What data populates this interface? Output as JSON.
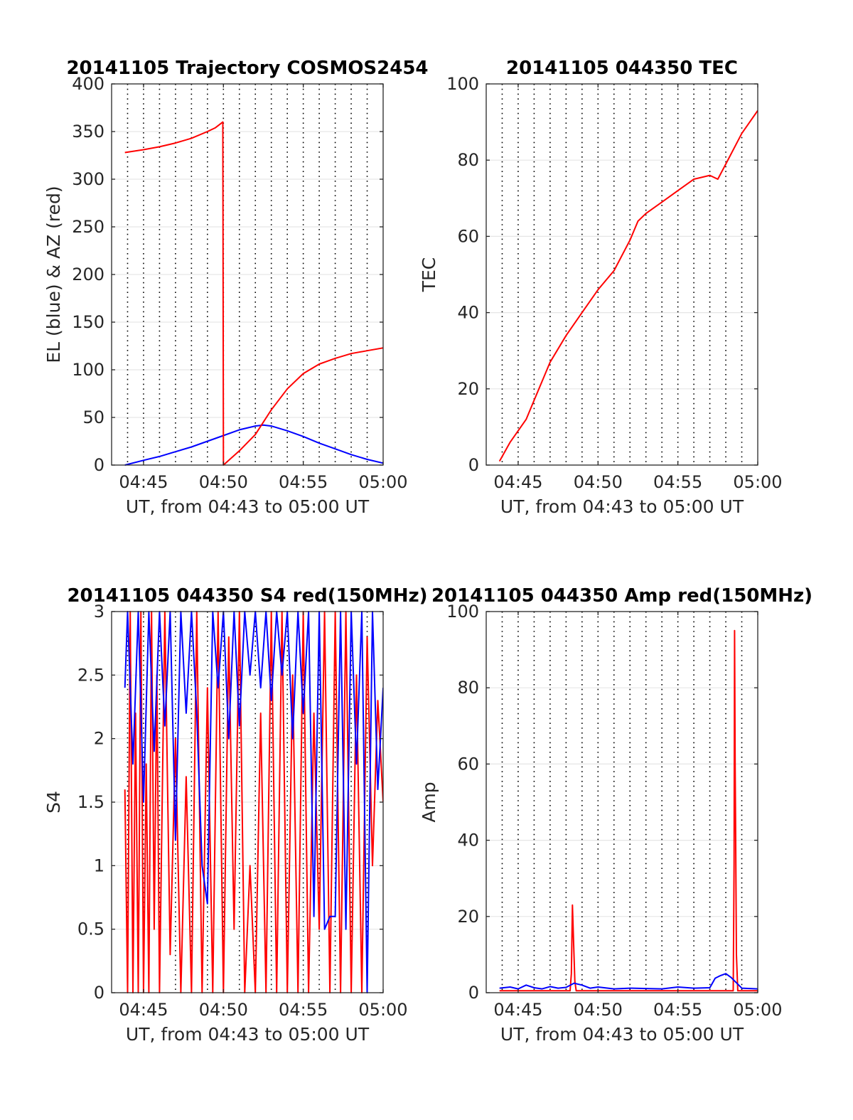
{
  "figure": {
    "colors": {
      "el": "#0000ff",
      "az": "#ff0000",
      "tec": "#ff0000",
      "red": "#ff0000",
      "blue": "#0000ff",
      "grid": "#e6e6e6",
      "axes": "#262626"
    }
  },
  "chart_data": [
    {
      "type": "line",
      "title": "20141105 Trajectory COSMOS2454",
      "xlabel": "UT, from 04:43 to 05:00 UT",
      "ylabel": "EL (blue) & AZ (red)",
      "xlim": [
        "04:43:00",
        "05:00:00"
      ],
      "ylim": [
        0,
        400
      ],
      "xticks": [
        "04:45",
        "04:50",
        "04:55",
        "05:00"
      ],
      "yticks": [
        0,
        50,
        100,
        150,
        200,
        250,
        300,
        350,
        400
      ],
      "grid": true,
      "series": [
        {
          "name": "EL",
          "color": "#0000ff",
          "x": [
            "04:43:50",
            "04:45:00",
            "04:46:00",
            "04:47:00",
            "04:48:00",
            "04:49:00",
            "04:50:00",
            "04:51:00",
            "04:52:00",
            "04:52:30",
            "04:53:00",
            "04:54:00",
            "04:55:00",
            "04:56:00",
            "04:57:00",
            "04:58:00",
            "04:59:00",
            "05:00:00"
          ],
          "y": [
            0,
            5,
            9,
            14,
            19,
            25,
            31,
            37,
            41,
            42,
            41,
            36,
            30,
            23,
            17,
            11,
            6,
            2
          ]
        },
        {
          "name": "AZ",
          "color": "#ff0000",
          "x": [
            "04:43:50",
            "04:45:00",
            "04:46:00",
            "04:47:00",
            "04:48:00",
            "04:49:00",
            "04:49:30",
            "04:49:58",
            "04:50:00",
            "04:51:00",
            "04:52:00",
            "04:53:00",
            "04:54:00",
            "04:55:00",
            "04:56:00",
            "04:57:00",
            "04:58:00",
            "04:59:00",
            "05:00:00"
          ],
          "y": [
            328,
            331,
            334,
            338,
            343,
            350,
            354,
            360,
            0,
            15,
            32,
            58,
            80,
            96,
            106,
            112,
            117,
            120,
            123
          ]
        }
      ]
    },
    {
      "type": "line",
      "title": "20141105 044350 TEC",
      "xlabel": "UT, from 04:43 to 05:00 UT",
      "ylabel": "TEC",
      "xlim": [
        "04:43:00",
        "05:00:00"
      ],
      "ylim": [
        0,
        100
      ],
      "xticks": [
        "04:45",
        "04:50",
        "04:55",
        "05:00"
      ],
      "yticks": [
        0,
        20,
        40,
        60,
        80,
        100
      ],
      "grid": true,
      "series": [
        {
          "color": "#ff0000",
          "x": [
            "04:43:50",
            "04:44:30",
            "04:45:00",
            "04:45:30",
            "04:46:00",
            "04:47:00",
            "04:48:00",
            "04:49:00",
            "04:50:00",
            "04:51:00",
            "04:52:00",
            "04:52:30",
            "04:53:00",
            "04:54:00",
            "04:55:00",
            "04:56:00",
            "04:57:00",
            "04:57:30",
            "04:58:00",
            "04:59:00",
            "05:00:00"
          ],
          "y": [
            1,
            6,
            9,
            12,
            17,
            27,
            34,
            40,
            46,
            51,
            59,
            64,
            66,
            69,
            72,
            75,
            76,
            75,
            79,
            87,
            93
          ]
        }
      ]
    },
    {
      "type": "line",
      "title": "20141105 044350 S4 red(150MHz)",
      "xlabel": "UT, from 04:43 to 05:00 UT",
      "ylabel": "S4",
      "xlim": [
        "04:43:00",
        "05:00:00"
      ],
      "ylim": [
        0,
        3
      ],
      "xticks": [
        "04:45",
        "04:50",
        "04:55",
        "05:00"
      ],
      "yticks": [
        "0",
        "0.5",
        "1",
        "1.5",
        "2",
        "2.5",
        "3"
      ],
      "grid": true,
      "series": [
        {
          "color": "#ff0000",
          "x": [
            "04:43:50",
            "04:44:00",
            "04:44:10",
            "04:44:20",
            "04:44:30",
            "04:44:40",
            "04:44:50",
            "04:45:00",
            "04:45:10",
            "04:45:20",
            "04:45:30",
            "04:45:40",
            "04:45:50",
            "04:46:00",
            "04:46:20",
            "04:46:40",
            "04:47:00",
            "04:47:20",
            "04:47:40",
            "04:48:00",
            "04:48:20",
            "04:48:40",
            "04:49:00",
            "04:49:20",
            "04:49:40",
            "04:50:00",
            "04:50:20",
            "04:50:40",
            "04:51:00",
            "04:51:20",
            "04:51:40",
            "04:52:00",
            "04:52:20",
            "04:52:40",
            "04:53:00",
            "04:53:20",
            "04:53:40",
            "04:54:00",
            "04:54:20",
            "04:54:40",
            "04:55:00",
            "04:55:20",
            "04:55:40",
            "04:56:00",
            "04:56:20",
            "04:56:40",
            "04:57:00",
            "04:57:20",
            "04:57:40",
            "04:58:00",
            "04:58:20",
            "04:58:40",
            "04:59:00",
            "04:59:20",
            "04:59:40",
            "05:00:00"
          ],
          "y": [
            1.6,
            0,
            3,
            0,
            2.2,
            0,
            3,
            0,
            1.8,
            0,
            3,
            0.5,
            2.5,
            0,
            3,
            0.3,
            2,
            0,
            1.7,
            0,
            3,
            0,
            2.4,
            0,
            3,
            0,
            2.8,
            0.5,
            3,
            0,
            1,
            0,
            2.2,
            0,
            3,
            0,
            3,
            0,
            2.5,
            0,
            3,
            0,
            2.2,
            0.5,
            3,
            0,
            3,
            0,
            3,
            0,
            2.5,
            0,
            2.8,
            1,
            2.3,
            1.5
          ]
        },
        {
          "color": "#0000ff",
          "x": [
            "04:43:50",
            "04:44:00",
            "04:44:20",
            "04:44:40",
            "04:45:00",
            "04:45:20",
            "04:45:40",
            "04:46:00",
            "04:46:20",
            "04:46:40",
            "04:47:00",
            "04:47:20",
            "04:47:40",
            "04:48:00",
            "04:48:20",
            "04:48:40",
            "04:49:00",
            "04:49:20",
            "04:49:40",
            "04:50:00",
            "04:50:20",
            "04:50:40",
            "04:51:00",
            "04:51:20",
            "04:51:40",
            "04:52:00",
            "04:52:20",
            "04:52:40",
            "04:53:00",
            "04:53:20",
            "04:53:40",
            "04:54:00",
            "04:54:20",
            "04:54:40",
            "04:55:00",
            "04:55:20",
            "04:55:40",
            "04:56:00",
            "04:56:20",
            "04:56:40",
            "04:57:00",
            "04:57:20",
            "04:57:40",
            "04:58:00",
            "04:58:20",
            "04:58:40",
            "04:59:00",
            "04:59:20",
            "04:59:40",
            "05:00:00"
          ],
          "y": [
            2.4,
            3,
            1.8,
            3,
            1.5,
            3,
            1.9,
            3,
            2.1,
            3,
            1.2,
            3,
            2.2,
            3,
            2.2,
            1.0,
            0.7,
            3,
            2.4,
            3,
            2,
            3,
            2.1,
            3,
            2.5,
            3,
            2.4,
            3,
            2.3,
            3,
            2.5,
            3,
            2.0,
            3,
            2.2,
            3,
            0.6,
            3,
            0.5,
            0.6,
            0.6,
            3,
            0.5,
            3,
            1.8,
            3,
            0,
            3,
            1.6,
            2.4
          ]
        }
      ]
    },
    {
      "type": "line",
      "title": "20141105 044350 Amp red(150MHz)",
      "xlabel": "UT, from 04:43 to 05:00 UT",
      "ylabel": "Amp",
      "xlim": [
        "04:43:00",
        "05:00:00"
      ],
      "ylim": [
        0,
        100
      ],
      "xticks": [
        "04:45",
        "04:50",
        "04:55",
        "05:00"
      ],
      "yticks": [
        0,
        20,
        40,
        60,
        80,
        100
      ],
      "grid": true,
      "series": [
        {
          "color": "#ff0000",
          "x": [
            "04:43:50",
            "04:48:15",
            "04:48:20",
            "04:48:24",
            "04:48:28",
            "04:48:33",
            "04:48:38",
            "04:58:28",
            "04:58:31",
            "04:58:33",
            "04:58:35",
            "04:58:37",
            "04:58:40",
            "04:58:45",
            "05:00:00"
          ],
          "y": [
            0.5,
            0.5,
            5,
            23,
            14,
            3,
            0.5,
            0.5,
            34,
            95,
            60,
            42,
            10,
            0.5,
            0.5
          ]
        },
        {
          "color": "#0000ff",
          "x": [
            "04:43:50",
            "04:44:30",
            "04:45:00",
            "04:45:30",
            "04:46:00",
            "04:46:30",
            "04:47:00",
            "04:47:30",
            "04:48:00",
            "04:48:30",
            "04:49:00",
            "04:49:30",
            "04:50:00",
            "04:51:00",
            "04:52:00",
            "04:53:00",
            "04:54:00",
            "04:55:00",
            "04:56:00",
            "04:57:00",
            "04:57:20",
            "04:57:40",
            "04:58:00",
            "04:58:20",
            "04:59:00",
            "05:00:00"
          ],
          "y": [
            1.2,
            1.5,
            1,
            2,
            1.3,
            1,
            1.6,
            1.2,
            1.4,
            2.5,
            2,
            1.2,
            1.5,
            1,
            1.2,
            1.1,
            1,
            1.5,
            1.2,
            1.3,
            3.8,
            4.5,
            5,
            4,
            1.2,
            1
          ]
        }
      ]
    }
  ]
}
